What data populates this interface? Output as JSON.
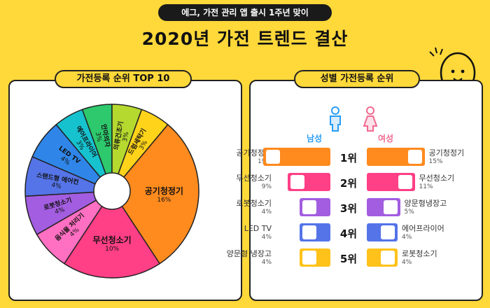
{
  "header": {
    "pill": "에그, 가전 관리 앱 출시 1주년 맞이",
    "title": "2020년 가전 트렌드 결산"
  },
  "left_panel": {
    "title": "가전등록 순위 TOP 10"
  },
  "right_panel": {
    "title": "성별 가전등록 순위",
    "male_label": "남성",
    "female_label": "여성",
    "male_color": "#2a9df4",
    "female_color": "#f06a8f"
  },
  "chart_data": [
    {
      "type": "pie",
      "title": "가전등록 순위 TOP 10",
      "categories": [
        "공기청정기",
        "무선청소기",
        "음식물 처리기",
        "로봇청소기",
        "스탠드형 에어컨",
        "LED TV",
        "에어프라이어",
        "안마의자",
        "의류건조기",
        "드럼세탁기"
      ],
      "values": [
        16,
        10,
        4,
        4,
        4,
        4,
        3,
        3,
        3,
        3
      ],
      "labels": [
        "16%",
        "10%",
        "4%",
        "4%",
        "4%",
        "4%",
        "3%",
        "3%",
        "3%",
        "3%"
      ],
      "colors": [
        "#ff8a1e",
        "#ff3f86",
        "#ff6fc2",
        "#a35de0",
        "#5574e8",
        "#2f86e8",
        "#17c2cf",
        "#2ec96d",
        "#b6d92f",
        "#ffd31a"
      ]
    },
    {
      "type": "bar",
      "title": "성별 가전등록 순위",
      "categories": [
        "1위",
        "2위",
        "3위",
        "4위",
        "5위"
      ],
      "series": [
        {
          "name": "남성",
          "items": [
            "공기청정기",
            "무선청소기",
            "로봇청소기",
            "LED TV",
            "양문형 냉장고"
          ],
          "values": [
            19,
            9,
            4,
            4,
            4
          ],
          "labels": [
            "19%",
            "9%",
            "4%",
            "4%",
            "4%"
          ]
        },
        {
          "name": "여성",
          "items": [
            "공기청정기",
            "무선청소기",
            "양문형냉장고",
            "에어프라이어",
            "로봇청소기"
          ],
          "values": [
            15,
            11,
            5,
            4,
            4
          ],
          "labels": [
            "15%",
            "11%",
            "5%",
            "4%",
            "4%"
          ]
        }
      ],
      "bar_colors": [
        "#ff8a1e",
        "#ff3f86",
        "#a35de0",
        "#5574e8",
        "#ffc21a"
      ]
    }
  ]
}
